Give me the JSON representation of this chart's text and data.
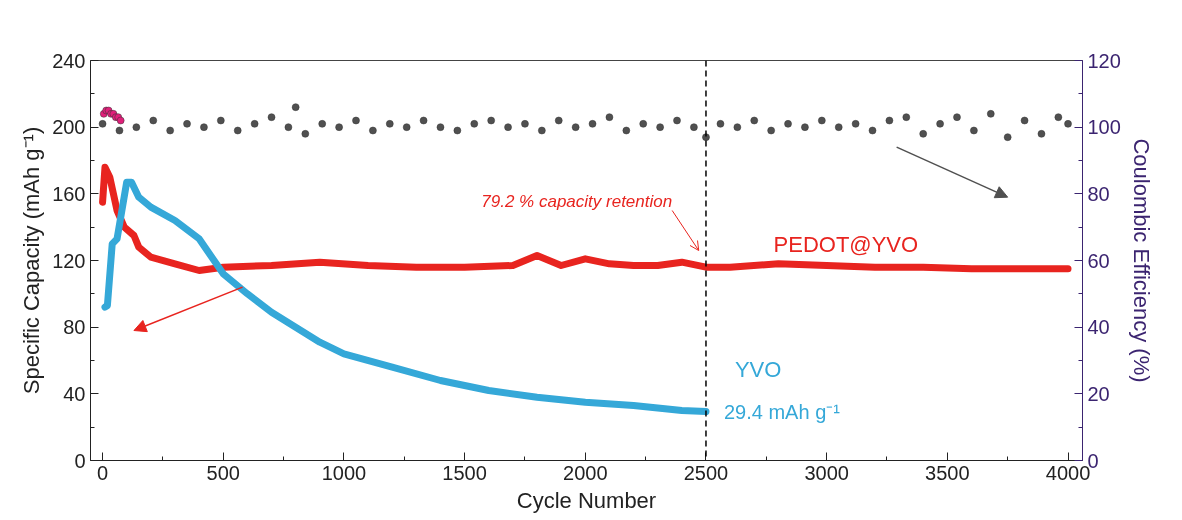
{
  "chart_data": {
    "type": "line",
    "xlabel": "Cycle Number",
    "ylabel": "Specific Capacity (mAh g⁻¹)",
    "y2label": "Coulombic Efficiency (%)",
    "xlim": [
      -50,
      4060
    ],
    "ylim": [
      0,
      240
    ],
    "y2lim": [
      0,
      120
    ],
    "xticks": [
      0,
      {
        "value": 250,
        "label": null
      },
      500,
      {
        "value": 750,
        "label": null
      },
      1000,
      {
        "value": 1250,
        "label": null
      },
      1500,
      {
        "value": 1750,
        "label": null
      },
      2000,
      {
        "value": 2250,
        "label": null
      },
      2500,
      {
        "value": 2750,
        "label": null
      },
      3000,
      {
        "value": 3250,
        "label": null
      },
      3500,
      {
        "value": 3750,
        "label": null
      },
      4000
    ],
    "yticks": [
      0,
      {
        "value": 20,
        "label": null
      },
      40,
      {
        "value": 60,
        "label": null
      },
      80,
      {
        "value": 100,
        "label": null
      },
      120,
      {
        "value": 140,
        "label": null
      },
      160,
      {
        "value": 180,
        "label": null
      },
      200,
      {
        "value": 220,
        "label": null
      },
      240
    ],
    "y2ticks": [
      0,
      {
        "value": 10,
        "label": null
      },
      20,
      {
        "value": 30,
        "label": null
      },
      40,
      {
        "value": 50,
        "label": null
      },
      60,
      {
        "value": 70,
        "label": null
      },
      80,
      {
        "value": 90,
        "label": null
      },
      100,
      {
        "value": 110,
        "label": null
      },
      120
    ],
    "grid": false,
    "legend": false,
    "series": [
      {
        "type": "scatter",
        "axis": "y2",
        "color": "#505050",
        "x": [
          0,
          70,
          140,
          210,
          280,
          350,
          420,
          490,
          560,
          630,
          700,
          770,
          800,
          840,
          910,
          980,
          1050,
          1120,
          1190,
          1260,
          1330,
          1400,
          1470,
          1540,
          1610,
          1680,
          1750,
          1820,
          1890,
          1960,
          2030,
          2100,
          2170,
          2240,
          2310,
          2380,
          2450,
          2500,
          2560,
          2630,
          2700,
          2770,
          2840,
          2910,
          2980,
          3050,
          3120,
          3190,
          3260,
          3330,
          3400,
          3470,
          3540,
          3610,
          3680,
          3750,
          3820,
          3890,
          3960,
          4000
        ],
        "values": [
          101,
          99,
          100,
          102,
          99,
          101,
          100,
          102,
          99,
          101,
          103,
          100,
          106,
          98,
          101,
          100,
          102,
          99,
          101,
          100,
          102,
          100,
          99,
          101,
          102,
          100,
          101,
          99,
          102,
          100,
          101,
          103,
          99,
          101,
          100,
          102,
          100,
          97,
          101,
          100,
          102,
          99,
          101,
          100,
          102,
          100,
          101,
          99,
          102,
          103,
          98,
          101,
          103,
          99,
          104,
          97,
          102,
          98,
          103,
          101
        ]
      },
      {
        "type": "scatter",
        "axis": "y2",
        "color": "#e0207a",
        "x": [
          5,
          15,
          25,
          35,
          45,
          55,
          65,
          75
        ],
        "values": [
          104,
          105,
          105,
          104,
          104,
          103,
          103,
          102
        ]
      },
      {
        "name": "PEDOT@YVO",
        "color": "#e8241f",
        "x": [
          0,
          10,
          30,
          60,
          90,
          130,
          150,
          200,
          300,
          400,
          500,
          700,
          900,
          1100,
          1300,
          1500,
          1700,
          1800,
          1900,
          2000,
          2100,
          2200,
          2300,
          2400,
          2500,
          2600,
          2800,
          3000,
          3200,
          3400,
          3600,
          3800,
          4000
        ],
        "values": [
          155,
          176,
          170,
          150,
          140,
          135,
          128,
          122,
          118,
          114,
          116,
          117,
          119,
          117,
          116,
          116,
          117,
          123,
          117,
          121,
          118,
          117,
          117,
          119,
          116,
          116,
          118,
          117,
          116,
          116,
          115,
          115,
          115
        ]
      },
      {
        "name": "YVO",
        "color": "#35a8d8",
        "x": [
          10,
          20,
          40,
          60,
          100,
          120,
          150,
          200,
          300,
          400,
          500,
          600,
          700,
          800,
          900,
          1000,
          1200,
          1400,
          1600,
          1800,
          2000,
          2200,
          2400,
          2500
        ],
        "values": [
          92,
          93,
          130,
          133,
          167,
          167,
          158,
          152,
          144,
          133,
          112,
          100,
          89,
          80,
          71,
          64,
          56,
          48,
          42,
          38,
          35,
          33,
          30,
          29.4
        ]
      }
    ],
    "ref_lines": [
      {
        "axis": "x",
        "value": 2500,
        "line_style": "dashed",
        "color": "#000000"
      }
    ],
    "annotations": [
      "79.2 % capacity retention",
      {
        "text": "29.4 mAh g⁻¹",
        "x": 2500,
        "y": 29.4
      }
    ]
  }
}
